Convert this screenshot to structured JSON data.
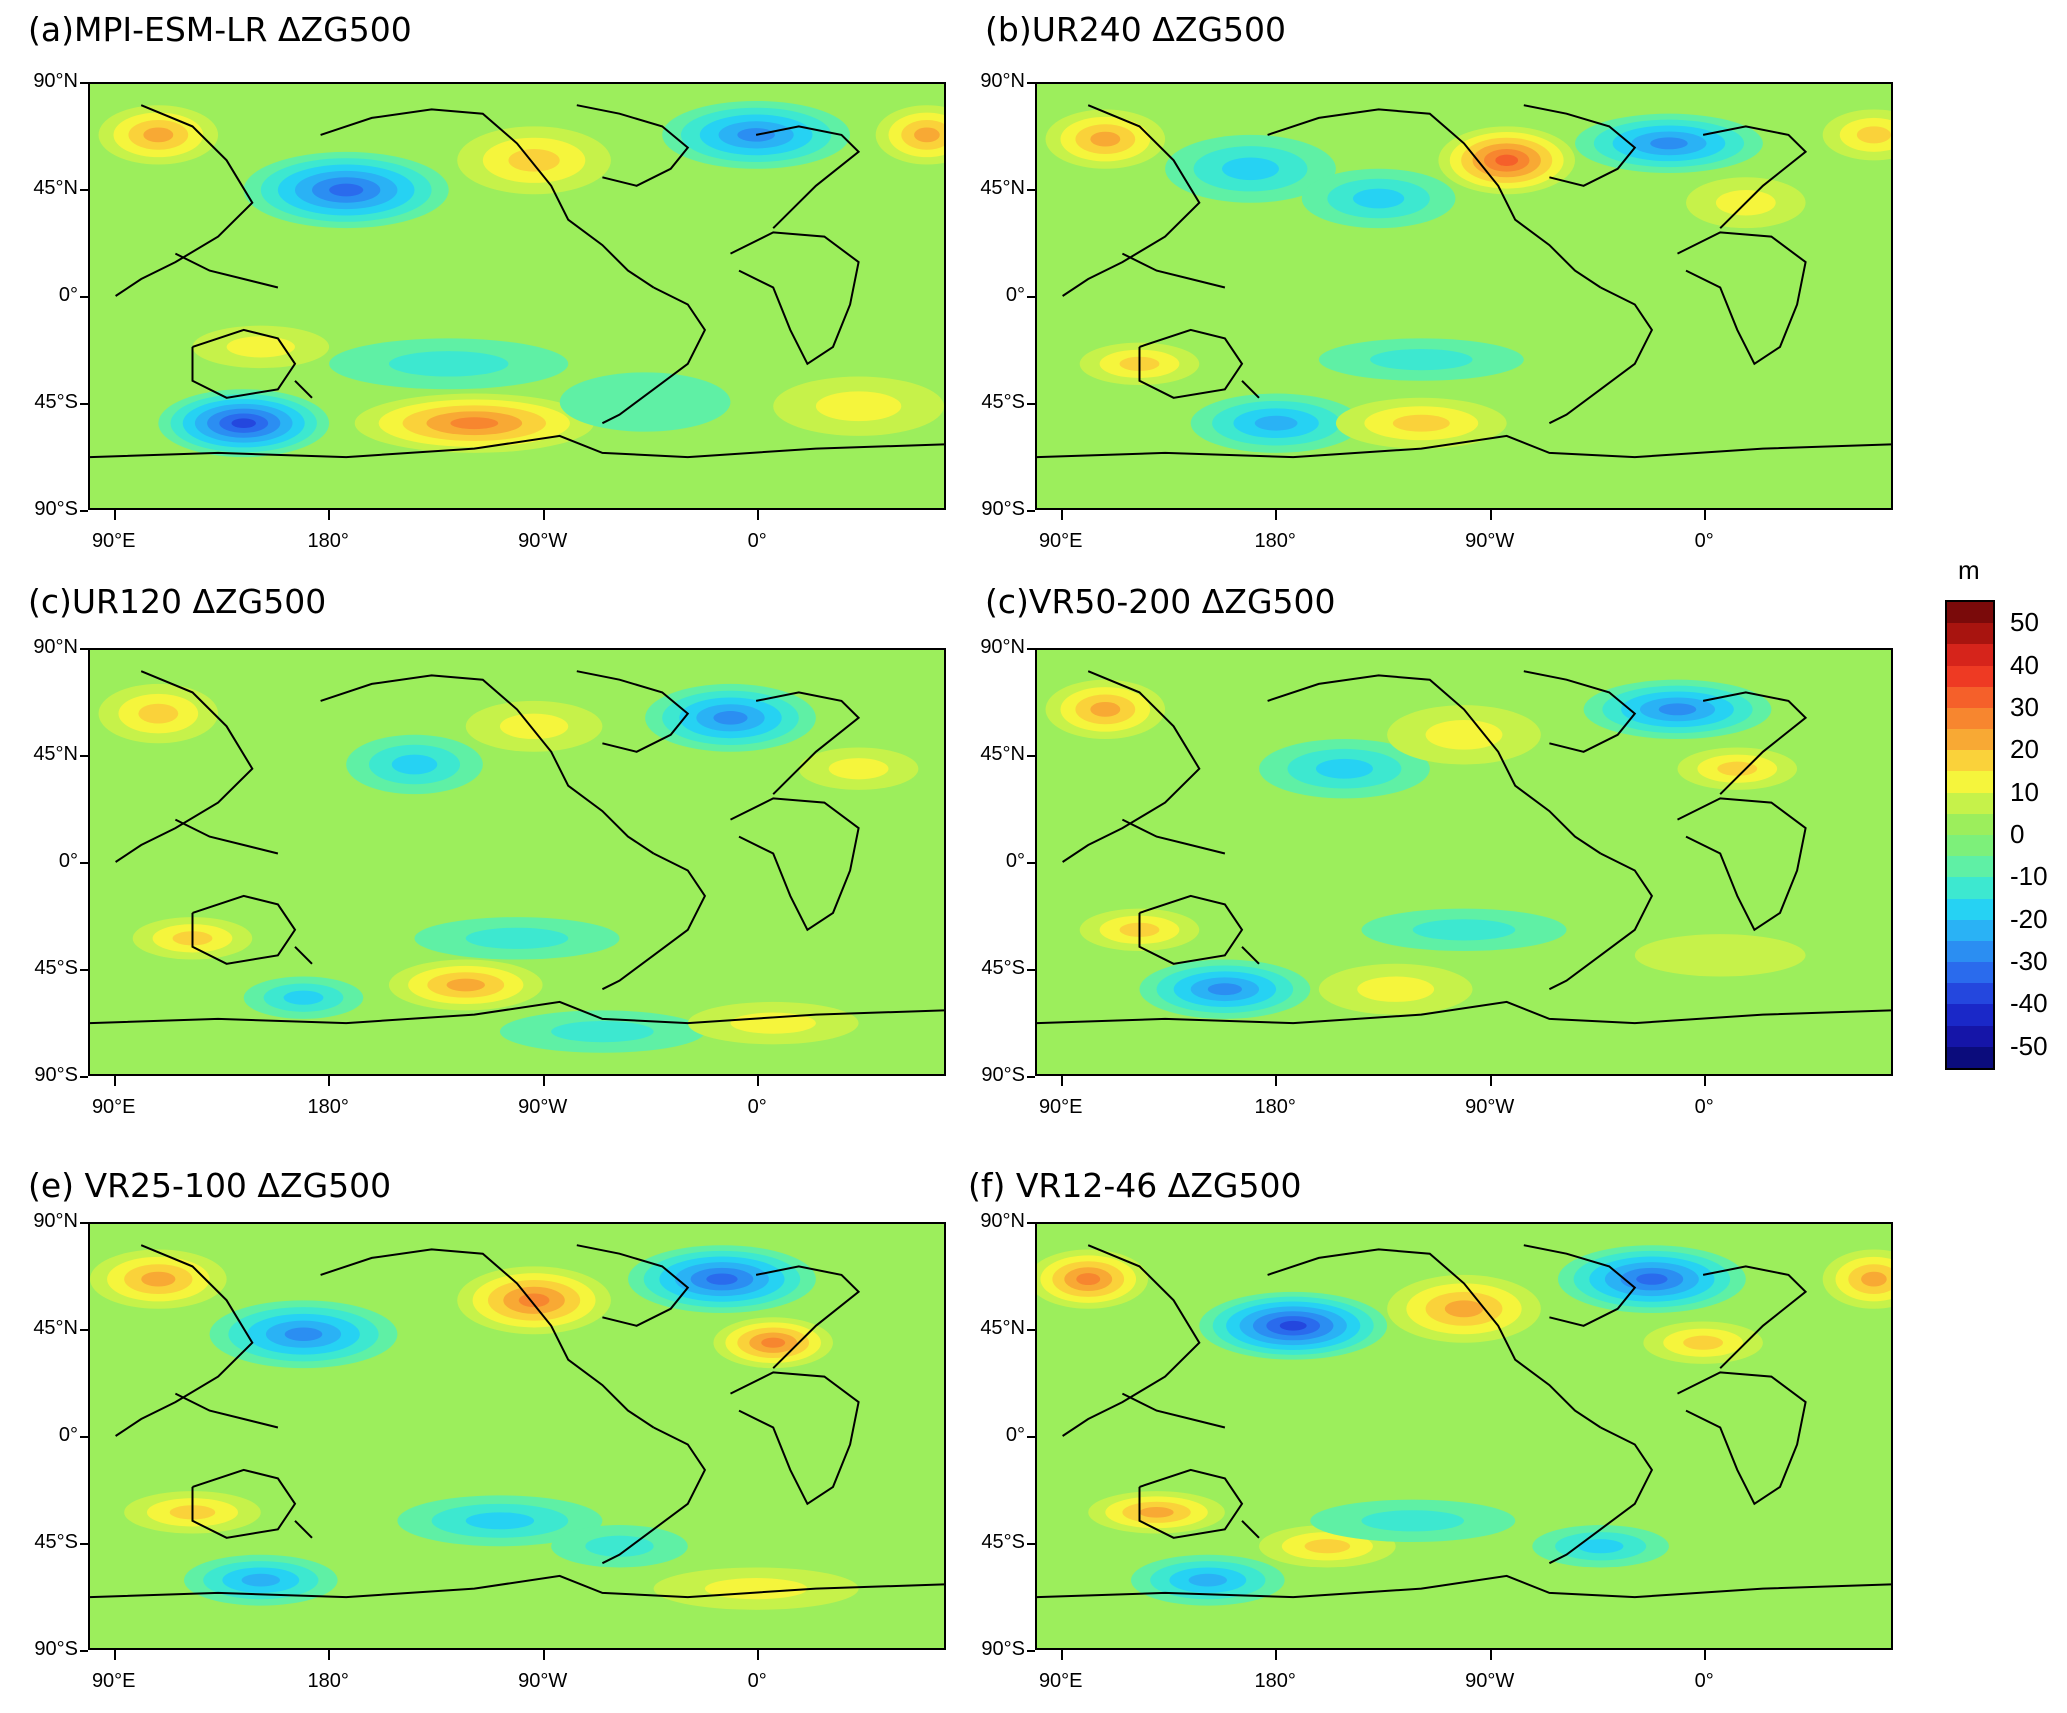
{
  "panels": [
    {
      "title": "(a)MPI-ESM-LR ΔZG500"
    },
    {
      "title": "(b)UR240 ΔZG500"
    },
    {
      "title": "(c)UR120 ΔZG500"
    },
    {
      "title": "(c)VR50-200 ΔZG500"
    },
    {
      "title": "(e) VR25-100 ΔZG500"
    },
    {
      "title": "(f) VR12-46 ΔZG500"
    }
  ],
  "axes": {
    "lat_labels": [
      "90°N",
      "45°N",
      "0°",
      "45°S",
      "90°S"
    ],
    "lon_labels": [
      "90°E",
      "180°",
      "90°W",
      "0°"
    ]
  },
  "colorbar": {
    "unit": "m",
    "labels": [
      "50",
      "40",
      "30",
      "20",
      "10",
      "0",
      "-10",
      "-20",
      "-30",
      "-40",
      "-50"
    ],
    "colors": [
      "#7a0a0a",
      "#a8140f",
      "#d6241b",
      "#ee3a23",
      "#f5602a",
      "#f7862f",
      "#f8a934",
      "#fad23a",
      "#f5f53c",
      "#c6f24a",
      "#9cee5c",
      "#7df07a",
      "#5ff0a5",
      "#3de8d0",
      "#26d2f3",
      "#2ab2f5",
      "#2b8ef2",
      "#2a6bed",
      "#2447de",
      "#1a28c8",
      "#1515a8",
      "#0b0c7c"
    ]
  },
  "chart_data": [
    {
      "type": "heatmap",
      "title": "(a)MPI-ESM-LR ΔZG500",
      "variable": "ΔZG500",
      "unit": "m",
      "range": [
        -50,
        50
      ]
    },
    {
      "type": "heatmap",
      "title": "(b)UR240 ΔZG500",
      "variable": "ΔZG500",
      "unit": "m",
      "range": [
        -50,
        50
      ]
    },
    {
      "type": "heatmap",
      "title": "(c)UR120 ΔZG500",
      "variable": "ΔZG500",
      "unit": "m",
      "range": [
        -50,
        50
      ]
    },
    {
      "type": "heatmap",
      "title": "(c)VR50-200 ΔZG500",
      "variable": "ΔZG500",
      "unit": "m",
      "range": [
        -50,
        50
      ]
    },
    {
      "type": "heatmap",
      "title": "(e) VR25-100 ΔZG500",
      "variable": "ΔZG500",
      "unit": "m",
      "range": [
        -50,
        50
      ]
    },
    {
      "type": "heatmap",
      "title": "(f) VR12-46 ΔZG500",
      "variable": "ΔZG500",
      "unit": "m",
      "range": [
        -50,
        50
      ]
    }
  ]
}
